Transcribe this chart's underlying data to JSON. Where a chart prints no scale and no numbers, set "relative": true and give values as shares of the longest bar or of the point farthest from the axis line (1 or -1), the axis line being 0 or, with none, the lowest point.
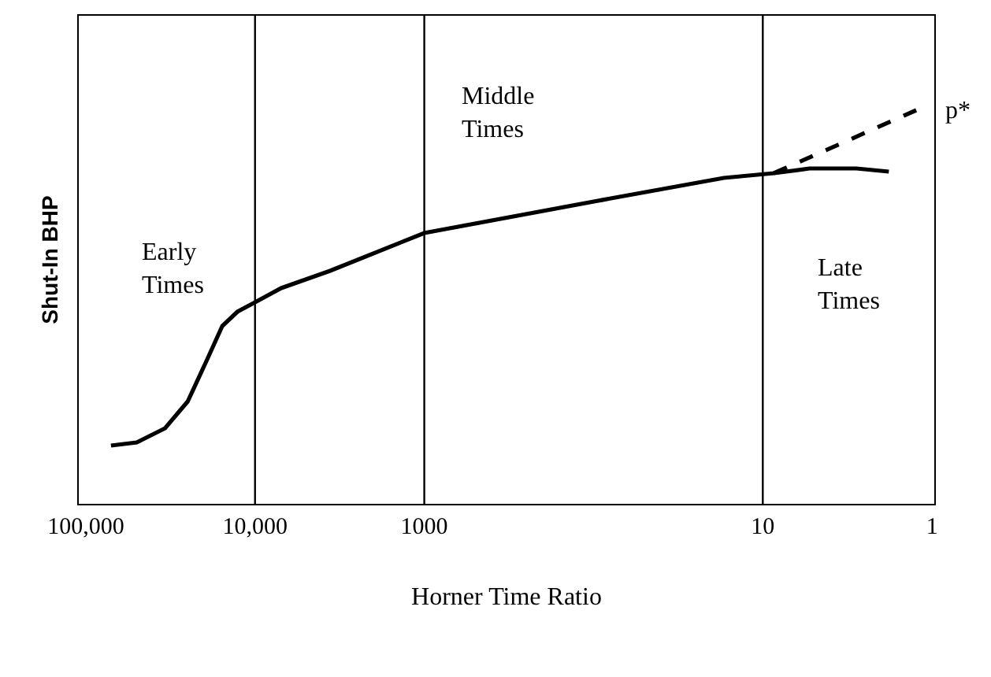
{
  "chart_data": {
    "type": "line",
    "xlabel": "Horner Time Ratio",
    "ylabel": "Shut-In BHP",
    "relative": true,
    "log": "x",
    "xlim": [
      110000,
      0.97
    ],
    "xticks": [
      {
        "value": 100000,
        "label": "100,000"
      },
      {
        "value": 10000,
        "label": "10,000"
      },
      1000,
      10,
      1
    ],
    "series": [
      {
        "color": "#000000",
        "line_style": "solid",
        "x": [
          71000,
          50000,
          34000,
          25000,
          19500,
          15600,
          12700,
          10000,
          7000,
          3600,
          1000,
          79,
          17,
          8.6,
          5.3,
          2.8,
          1.8
        ],
        "values": [
          0.148,
          0.156,
          0.192,
          0.26,
          0.36,
          0.452,
          0.488,
          0.512,
          0.548,
          0.592,
          0.688,
          0.776,
          0.828,
          0.84,
          0.852,
          0.852,
          0.844
        ]
      },
      {
        "name": "p*",
        "color": "#000000",
        "line_style": "dashed",
        "x": [
          8.6,
          1.24
        ],
        "values": [
          0.84,
          1
        ]
      }
    ],
    "ref_lines": [
      {
        "axis": "x",
        "value": 10000,
        "color": "#000000"
      },
      {
        "axis": "x",
        "value": 1000,
        "color": "#000000"
      },
      {
        "axis": "x",
        "value": 10,
        "color": "#000000"
      }
    ],
    "annotations": [
      "Early Times",
      "Middle Times",
      "Late Times"
    ],
    "grid": false,
    "marker": "none"
  }
}
